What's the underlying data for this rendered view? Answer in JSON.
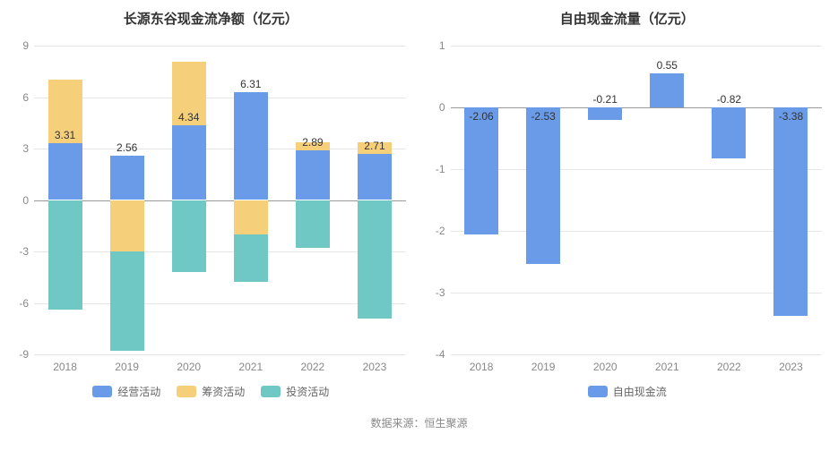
{
  "source_text": "数据来源：恒生聚源",
  "left_chart": {
    "type": "stacked-bar",
    "title": "长源东谷现金流净额（亿元）",
    "background_color": "#ffffff",
    "grid_color": "#e6e6e6",
    "axis_label_color": "#888888",
    "label_fontsize": 12,
    "title_fontsize": 15,
    "ylim": [
      -9,
      9
    ],
    "ytick_step": 3,
    "yticks": [
      -9,
      -6,
      -3,
      0,
      3,
      6,
      9
    ],
    "categories": [
      "2018",
      "2019",
      "2020",
      "2021",
      "2022",
      "2023"
    ],
    "bar_width": 0.55,
    "series": [
      {
        "name": "经营活动",
        "color": "#6a9be8",
        "values": [
          3.31,
          2.56,
          4.34,
          6.31,
          2.89,
          2.71
        ]
      },
      {
        "name": "筹资活动",
        "color": "#f6cf7b",
        "values": [
          3.7,
          -3.0,
          3.7,
          -2.0,
          0.5,
          0.65
        ]
      },
      {
        "name": "投资活动",
        "color": "#70c8c5",
        "values": [
          -6.4,
          -5.8,
          -4.2,
          -2.8,
          -2.8,
          -6.9
        ]
      }
    ],
    "value_labels": [
      {
        "x": 0,
        "text": "3.31",
        "y_value": 3.31,
        "pos": "on-pos"
      },
      {
        "x": 1,
        "text": "2.56",
        "y_value": 2.56,
        "pos": "on-pos"
      },
      {
        "x": 2,
        "text": "4.34",
        "y_value": 4.34,
        "pos": "on-pos"
      },
      {
        "x": 3,
        "text": "6.31",
        "y_value": 6.31,
        "pos": "on-pos"
      },
      {
        "x": 4,
        "text": "2.89",
        "y_value": 2.89,
        "pos": "on-pos"
      },
      {
        "x": 5,
        "text": "2.71",
        "y_value": 2.71,
        "pos": "on-pos"
      }
    ]
  },
  "right_chart": {
    "type": "bar",
    "title": "自由现金流量（亿元）",
    "background_color": "#ffffff",
    "grid_color": "#e6e6e6",
    "axis_label_color": "#888888",
    "label_fontsize": 12,
    "title_fontsize": 15,
    "ylim": [
      -4,
      1
    ],
    "ytick_step": 1,
    "yticks": [
      -4,
      -3,
      -2,
      -1,
      0,
      1
    ],
    "categories": [
      "2018",
      "2019",
      "2020",
      "2021",
      "2022",
      "2023"
    ],
    "bar_width": 0.55,
    "series": [
      {
        "name": "自由现金流",
        "color": "#6a9be8",
        "values": [
          -2.06,
          -2.53,
          -0.21,
          0.55,
          -0.82,
          -3.38
        ]
      }
    ],
    "value_labels": [
      {
        "x": 0,
        "text": "-2.06",
        "y_value": -2.06,
        "pos": "inside-neg"
      },
      {
        "x": 1,
        "text": "-2.53",
        "y_value": -2.53,
        "pos": "inside-neg"
      },
      {
        "x": 2,
        "text": "-0.21",
        "y_value": -0.21,
        "pos": "above-neg"
      },
      {
        "x": 3,
        "text": "0.55",
        "y_value": 0.55,
        "pos": "above-pos"
      },
      {
        "x": 4,
        "text": "-0.82",
        "y_value": -0.82,
        "pos": "above-neg"
      },
      {
        "x": 5,
        "text": "-3.38",
        "y_value": -3.38,
        "pos": "inside-neg"
      }
    ]
  }
}
